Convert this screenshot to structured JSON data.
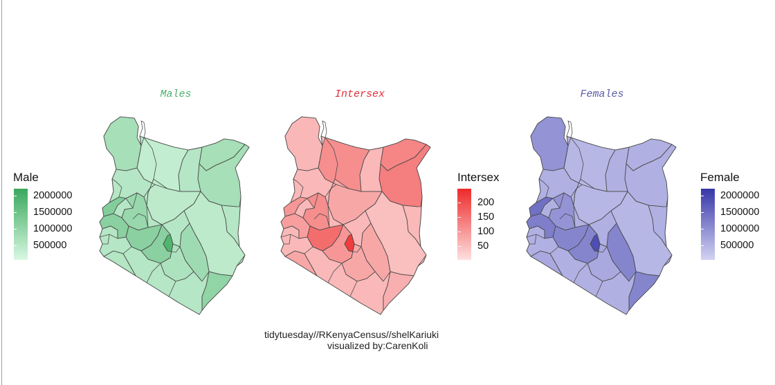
{
  "caption": {
    "line1": "tidytuesday//RKenyaCensus//shelKariuki",
    "line2": "visualized by:CarenKoli"
  },
  "chart_data": [
    {
      "type": "map",
      "title": "Males",
      "legend": {
        "title": "Male",
        "ticks": [
          "2000000",
          "1500000",
          "1000000",
          "500000"
        ],
        "tick_values": [
          2000000,
          1500000,
          1000000,
          500000
        ],
        "range": [
          100000,
          2200000
        ],
        "low_color": "#d8f8e2",
        "high_color": "#3aa85c"
      },
      "title_color": "#4caf6e"
    },
    {
      "type": "map",
      "title": "Intersex",
      "legend": {
        "title": "Intersex",
        "ticks": [
          "200",
          "150",
          "100",
          "50"
        ],
        "tick_values": [
          200,
          150,
          100,
          50
        ],
        "range": [
          1,
          245
        ],
        "low_color": "#fde0e0",
        "high_color": "#ee2a2a"
      },
      "title_color": "#e0303a"
    },
    {
      "type": "map",
      "title": "Females",
      "legend": {
        "title": "Female",
        "ticks": [
          "2000000",
          "1500000",
          "1000000",
          "500000"
        ],
        "tick_values": [
          2000000,
          1500000,
          1000000,
          500000
        ],
        "range": [
          100000,
          2200000
        ],
        "low_color": "#d3d3f3",
        "high_color": "#3636a8"
      },
      "title_color": "#5a5aa8"
    }
  ]
}
